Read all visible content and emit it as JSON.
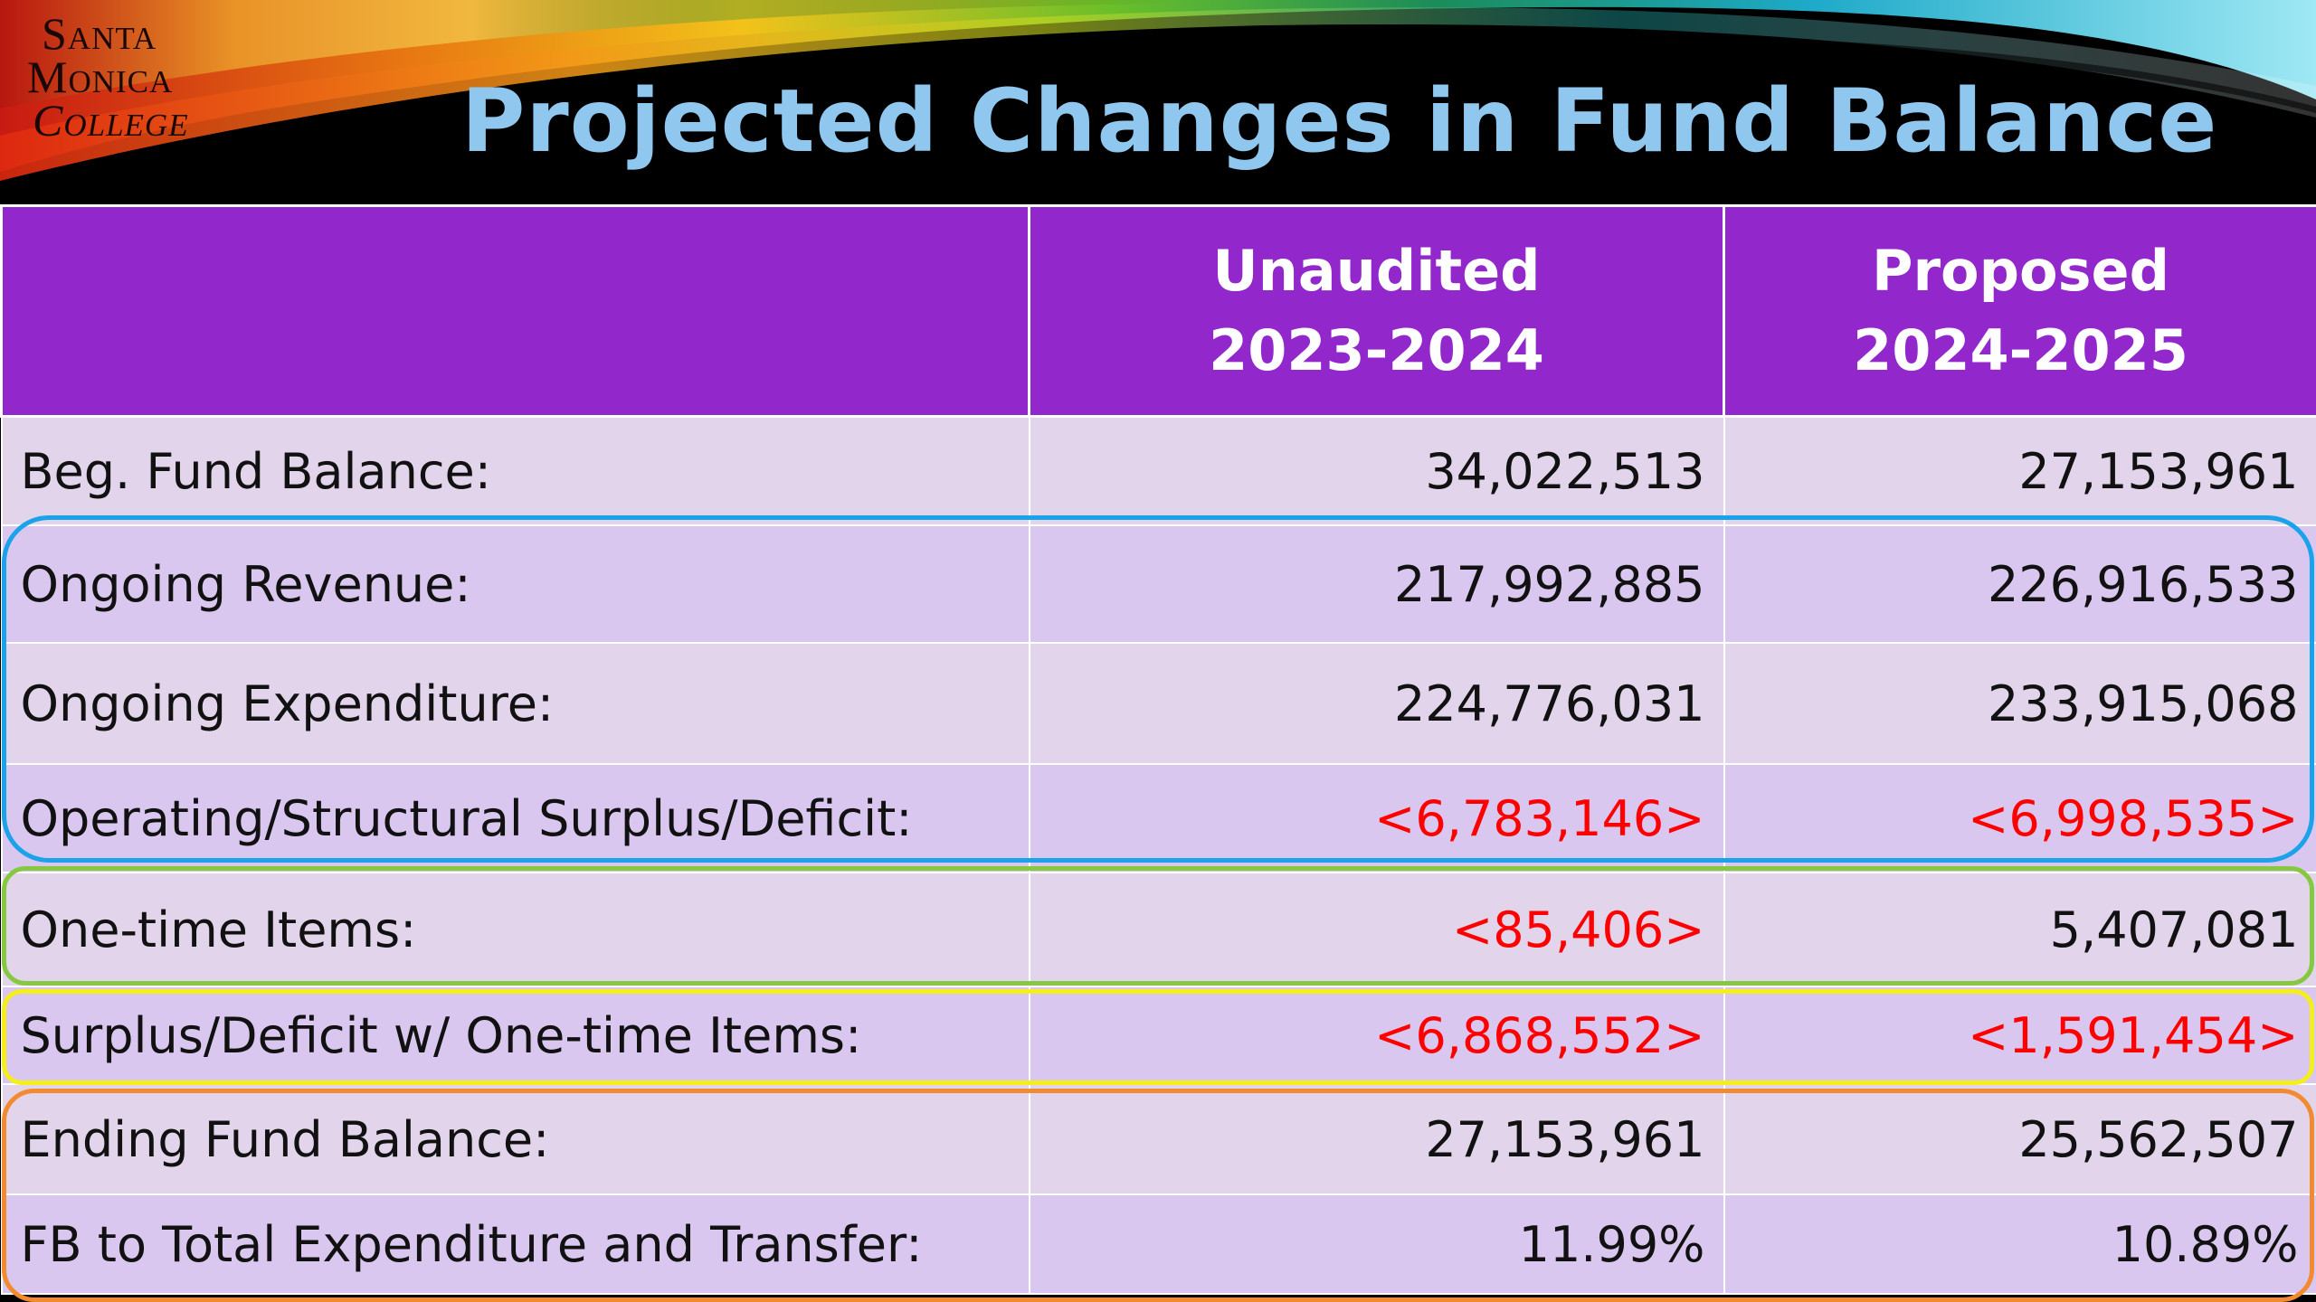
{
  "logo": {
    "line1": "Santa",
    "line2": "Monica",
    "line3": "College"
  },
  "title": "Projected Changes in Fund Balance",
  "table": {
    "headers": [
      {
        "line1": "",
        "line2": ""
      },
      {
        "line1": "Unaudited",
        "line2": "2023-2024"
      },
      {
        "line1": "Proposed",
        "line2": "2024-2025"
      }
    ],
    "rows": [
      {
        "label": "Beg. Fund Balance:",
        "y2324": "34,022,513",
        "y2425": "27,153,961"
      },
      {
        "label": "Ongoing Revenue:",
        "y2324": "217,992,885",
        "y2425": "226,916,533"
      },
      {
        "label": "Ongoing Expenditure:",
        "y2324": "224,776,031",
        "y2425": "233,915,068"
      },
      {
        "label": "Operating/Structural Surplus/Deficit:",
        "y2324": "<6,783,146>",
        "y2425": "<6,998,535>"
      },
      {
        "label": "One-time Items:",
        "y2324": "<85,406>",
        "y2425": "5,407,081"
      },
      {
        "label": "Surplus/Deficit w/ One-time Items:",
        "y2324": "<6,868,552>",
        "y2425": "<1,591,454>"
      },
      {
        "label": "Ending Fund Balance:",
        "y2324": "27,153,961",
        "y2425": "25,562,507"
      },
      {
        "label": "FB to Total Expenditure and Transfer:",
        "y2324": "11.99%",
        "y2425": "10.89%"
      }
    ]
  },
  "colors": {
    "header_bg": "#9228cc",
    "title": "#8fc7ef",
    "negative": "#ff0000",
    "outline_ongoing": "#1aa3e8",
    "outline_onetime": "#86c840",
    "outline_surplus": "#f4ee1a",
    "outline_ending": "#f28a30"
  }
}
